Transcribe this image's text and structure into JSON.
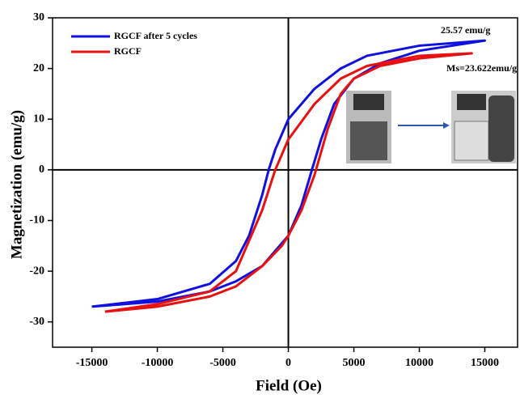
{
  "chart_data": {
    "type": "line",
    "x_label": "Field (Oe)",
    "y_label": "Magnetization (emu/g)",
    "xlim": [
      -18000,
      17500
    ],
    "ylim": [
      -35,
      30
    ],
    "xticks": [
      -15000,
      -10000,
      -5000,
      0,
      5000,
      10000,
      15000
    ],
    "yticks": [
      -30,
      -20,
      -10,
      0,
      10,
      20,
      30
    ],
    "annotations": [
      "25.57 emu/g",
      "Ms=23.622emu/g"
    ],
    "series": [
      {
        "name": "RGCF after 5 cycles",
        "color": "#1010e0",
        "x": [
          -15000,
          -10000,
          -6000,
          -4000,
          -2000,
          0,
          1000,
          1800,
          2500,
          3500,
          5000,
          7000,
          10000,
          15000,
          10000,
          6000,
          4000,
          2000,
          0,
          -1000,
          -1500,
          -2000,
          -3000,
          -4000,
          -6000,
          -10000,
          -15000
        ],
        "values": [
          -27,
          -26,
          -24,
          -22,
          -19,
          -13,
          -7,
          0,
          6,
          13,
          18,
          21,
          23.5,
          25.5,
          24.5,
          22.5,
          20,
          16,
          10,
          4,
          0,
          -5,
          -13,
          -18,
          -22.5,
          -25.5,
          -27
        ]
      },
      {
        "name": "RGCF",
        "color": "#e81010",
        "x": [
          -14000,
          -10000,
          -6000,
          -4000,
          -2000,
          -500,
          0,
          1000,
          2000,
          3000,
          4000,
          5000,
          7000,
          10000,
          14000,
          10000,
          6000,
          4000,
          2000,
          0,
          -1000,
          -2000,
          -3000,
          -4000,
          -6000,
          -10000,
          -14000
        ],
        "values": [
          -28,
          -27,
          -25,
          -23,
          -19,
          -15,
          -13,
          -8,
          -1,
          8,
          15,
          18,
          20.5,
          22,
          23,
          22.5,
          20.5,
          18,
          13,
          6,
          0,
          -8,
          -14,
          -20,
          -24,
          -26.5,
          -28
        ]
      }
    ]
  }
}
